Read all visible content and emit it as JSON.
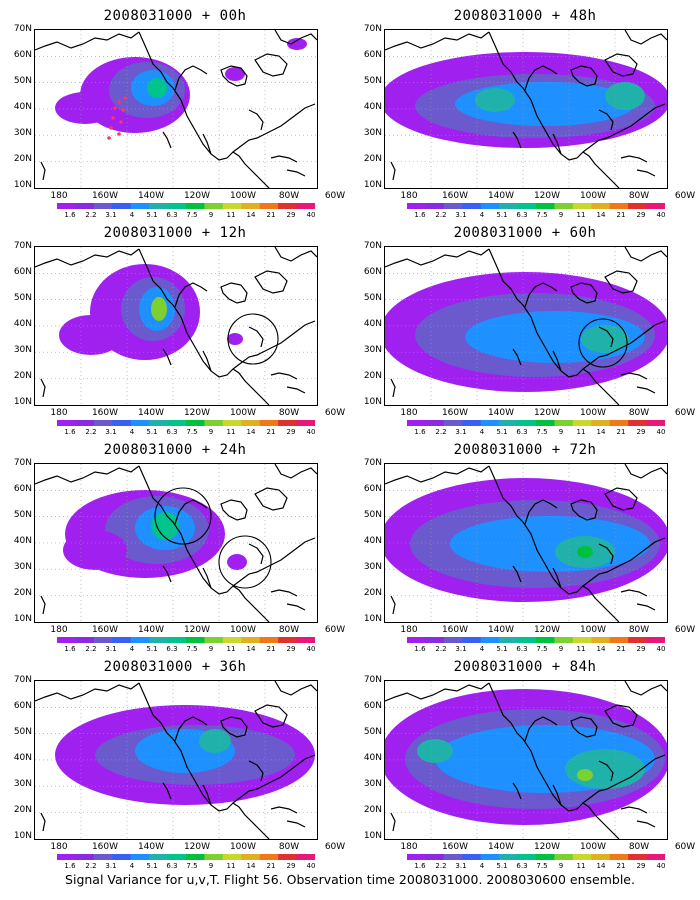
{
  "panels": [
    {
      "title": "2008031000 + 00h",
      "lead": "00h"
    },
    {
      "title": "2008031000 + 48h",
      "lead": "48h"
    },
    {
      "title": "2008031000 + 12h",
      "lead": "12h"
    },
    {
      "title": "2008031000 + 60h",
      "lead": "60h"
    },
    {
      "title": "2008031000 + 24h",
      "lead": "24h"
    },
    {
      "title": "2008031000 + 72h",
      "lead": "72h"
    },
    {
      "title": "2008031000 + 36h",
      "lead": "36h"
    },
    {
      "title": "2008031000 + 84h",
      "lead": "84h"
    }
  ],
  "lat_labels": [
    "70N",
    "60N",
    "50N",
    "40N",
    "30N",
    "20N",
    "10N"
  ],
  "lon_labels": [
    "180",
    "160W",
    "140W",
    "120W",
    "100W",
    "80W",
    "60W"
  ],
  "colorbar": {
    "labels": [
      "1.6",
      "2.2",
      "3.1",
      "4",
      "5.1",
      "6.3",
      "7.5",
      "9",
      "11",
      "14",
      "21",
      "29",
      "40"
    ],
    "colors": [
      "#a020f0",
      "#8a2be2",
      "#6a5acd",
      "#3a5ff5",
      "#1e90ff",
      "#20b2aa",
      "#00c48c",
      "#00c040",
      "#7cd030",
      "#c8d82c",
      "#e0b020",
      "#f07818",
      "#e03030",
      "#e81878"
    ]
  },
  "caption": "Signal Variance for u,v,T. Flight 56. Observation time 2008031000. 2008030600 ensemble."
}
